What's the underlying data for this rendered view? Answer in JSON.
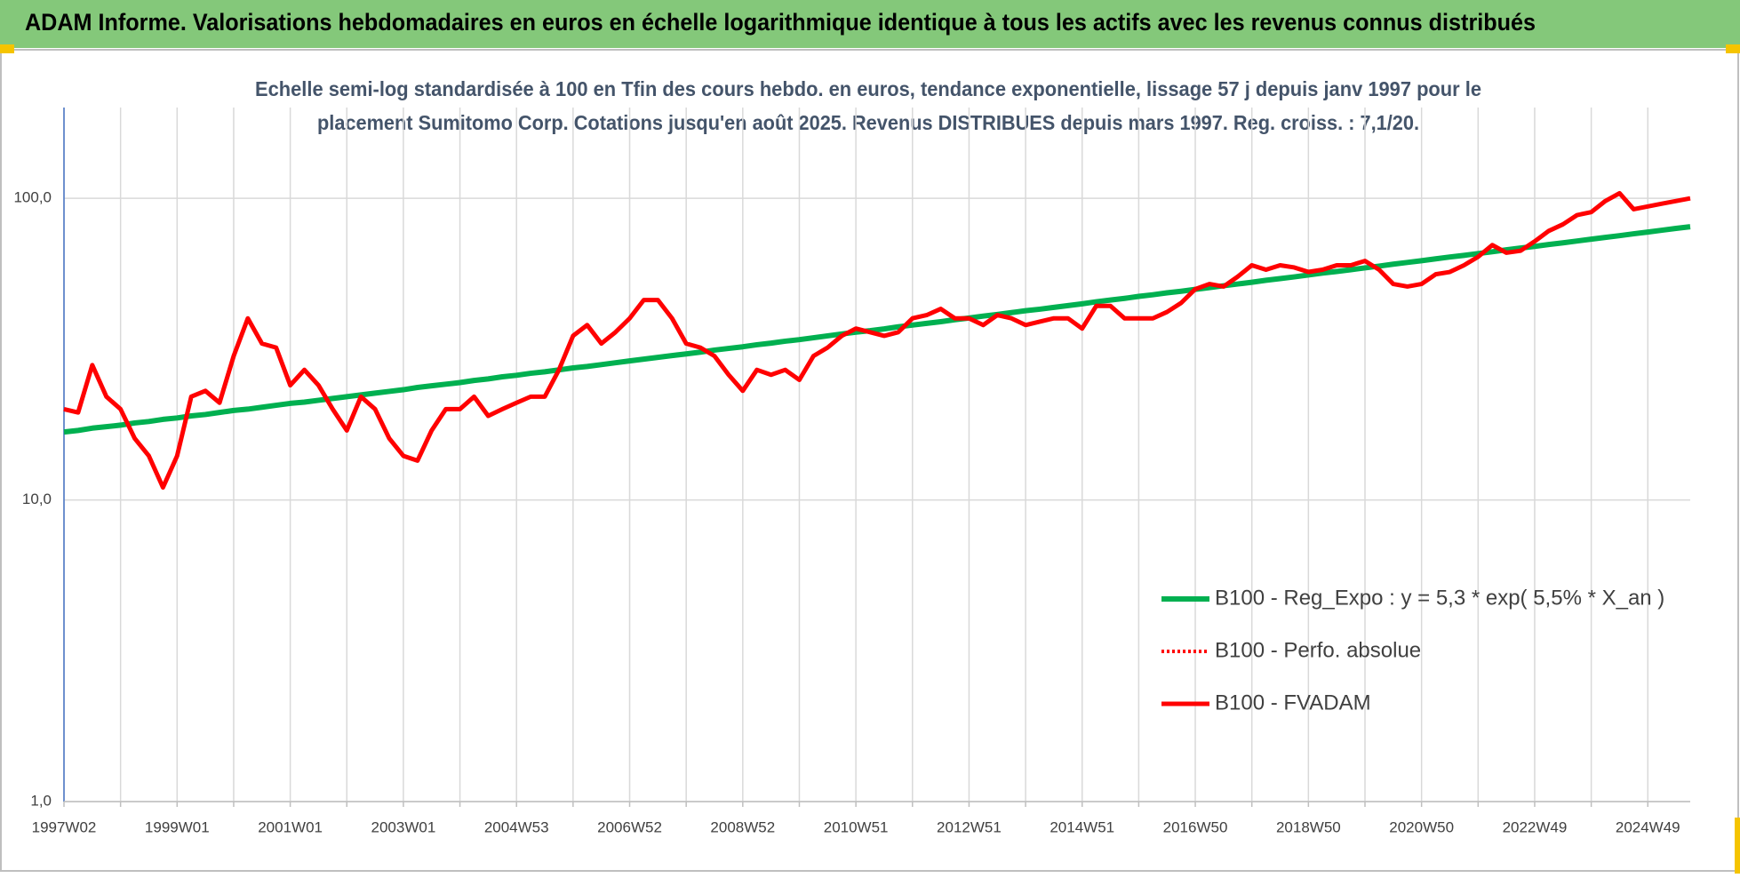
{
  "chart_data": {
    "type": "line",
    "title": "ADAM Informe. Valorisations hebdomadaires en euros en échelle logarithmique identique à tous les actifs avec les revenus connus distribués",
    "subtitle": [
      "Echelle semi-log standardisée à 100 en Tfin des cours hebdo. en euros, tendance exponentielle, lissage 57 j depuis janv 1997 pour le",
      "placement Sumitomo Corp. Cotations jusqu'en août 2025. Revenus DISTRIBUES depuis mars 1997. Reg. croiss. : 7,1/20."
    ],
    "log_scale": true,
    "grid": true,
    "legend": "right",
    "ylim": [
      1,
      200
    ],
    "yticks": [
      {
        "value": 1,
        "label": "1,0"
      },
      {
        "value": 10,
        "label": "10,0"
      },
      {
        "value": 100,
        "label": "100,0"
      }
    ],
    "categories": [
      "1997W02",
      null,
      null,
      null,
      null,
      null,
      null,
      null,
      "1999W01",
      null,
      null,
      null,
      null,
      null,
      null,
      null,
      "2001W01",
      null,
      null,
      null,
      null,
      null,
      null,
      null,
      "2003W01",
      null,
      null,
      null,
      null,
      null,
      null,
      null,
      "2004W53",
      null,
      null,
      null,
      null,
      null,
      null,
      null,
      "2006W52",
      null,
      null,
      null,
      null,
      null,
      null,
      null,
      "2008W52",
      null,
      null,
      null,
      null,
      null,
      null,
      null,
      "2010W51",
      null,
      null,
      null,
      null,
      null,
      null,
      null,
      "2012W51",
      null,
      null,
      null,
      null,
      null,
      null,
      null,
      "2014W51",
      null,
      null,
      null,
      null,
      null,
      null,
      null,
      "2016W50",
      null,
      null,
      null,
      null,
      null,
      null,
      null,
      "2018W50",
      null,
      null,
      null,
      null,
      null,
      null,
      null,
      "2020W50",
      null,
      null,
      null,
      null,
      null,
      null,
      null,
      "2022W49",
      null,
      null,
      null,
      null,
      null,
      null,
      null,
      "2024W49",
      null,
      null,
      null
    ],
    "series": [
      {
        "name": "B100 - Reg_Expo : y = 5,3 * exp( 5,5% *  X_an )",
        "color": "#00b050",
        "style": "solid",
        "width": 6,
        "values": [
          16.8,
          17.0,
          17.3,
          17.5,
          17.7,
          18.0,
          18.2,
          18.5,
          18.7,
          19.0,
          19.2,
          19.5,
          19.8,
          20.0,
          20.3,
          20.6,
          20.9,
          21.1,
          21.4,
          21.7,
          22.0,
          22.3,
          22.6,
          22.9,
          23.2,
          23.6,
          23.9,
          24.2,
          24.5,
          24.9,
          25.2,
          25.6,
          25.9,
          26.3,
          26.6,
          27.0,
          27.4,
          27.7,
          28.1,
          28.5,
          28.9,
          29.3,
          29.7,
          30.1,
          30.5,
          30.9,
          31.4,
          31.8,
          32.2,
          32.7,
          33.1,
          33.6,
          34.0,
          34.5,
          35.0,
          35.5,
          36.0,
          36.4,
          36.9,
          37.5,
          38.0,
          38.5,
          39.0,
          39.6,
          40.1,
          40.7,
          41.2,
          41.8,
          42.4,
          42.9,
          43.5,
          44.1,
          44.7,
          45.4,
          46.0,
          46.6,
          47.3,
          47.9,
          48.6,
          49.2,
          49.9,
          50.6,
          51.3,
          52.0,
          52.7,
          53.5,
          54.2,
          54.9,
          55.7,
          56.5,
          57.2,
          58.0,
          58.8,
          59.6,
          60.5,
          61.3,
          62.1,
          63.0,
          63.9,
          64.7,
          65.6,
          66.5,
          67.5,
          68.4,
          69.3,
          70.3,
          71.2,
          72.2,
          73.2,
          74.2,
          75.2,
          76.3,
          77.3,
          78.4,
          79.5,
          80.5
        ]
      },
      {
        "name": "B100 - Perfo. absolue",
        "color": "#ff0000",
        "style": "dotted",
        "width": 4,
        "values": [
          20,
          19.5,
          28,
          22,
          20,
          16,
          14,
          11,
          14,
          22,
          23,
          21,
          30,
          40,
          33,
          32,
          24,
          27,
          24,
          20,
          17,
          22,
          20,
          16,
          14,
          13.5,
          17,
          20,
          20,
          22,
          19,
          20,
          21,
          22,
          22,
          27,
          35,
          38,
          33,
          36,
          40,
          46,
          46,
          40,
          33,
          32,
          30,
          26,
          23,
          27,
          26,
          27,
          25,
          30,
          32,
          35,
          37,
          36,
          35,
          36,
          40,
          41,
          43,
          40,
          40,
          38,
          41,
          40,
          38,
          39,
          40,
          40,
          37,
          44,
          44,
          40,
          40,
          40,
          42,
          45,
          50,
          52,
          51,
          55,
          60,
          58,
          60,
          59,
          57,
          58,
          60,
          60,
          62,
          58,
          52,
          51,
          52,
          56,
          57,
          60,
          64,
          70,
          66,
          67,
          72,
          78,
          82,
          88,
          90,
          98,
          104,
          92,
          94,
          96,
          98,
          100
        ]
      },
      {
        "name": "B100 - FVADAM",
        "color": "#ff0000",
        "style": "solid",
        "width": 5,
        "values": [
          20,
          19.5,
          28,
          22,
          20,
          16,
          14,
          11,
          14,
          22,
          23,
          21,
          30,
          40,
          33,
          32,
          24,
          27,
          24,
          20,
          17,
          22,
          20,
          16,
          14,
          13.5,
          17,
          20,
          20,
          22,
          19,
          20,
          21,
          22,
          22,
          27,
          35,
          38,
          33,
          36,
          40,
          46,
          46,
          40,
          33,
          32,
          30,
          26,
          23,
          27,
          26,
          27,
          25,
          30,
          32,
          35,
          37,
          36,
          35,
          36,
          40,
          41,
          43,
          40,
          40,
          38,
          41,
          40,
          38,
          39,
          40,
          40,
          37,
          44,
          44,
          40,
          40,
          40,
          42,
          45,
          50,
          52,
          51,
          55,
          60,
          58,
          60,
          59,
          57,
          58,
          60,
          60,
          62,
          58,
          52,
          51,
          52,
          56,
          57,
          60,
          64,
          70,
          66,
          67,
          72,
          78,
          82,
          88,
          90,
          98,
          104,
          92,
          94,
          96,
          98,
          100
        ]
      }
    ]
  }
}
